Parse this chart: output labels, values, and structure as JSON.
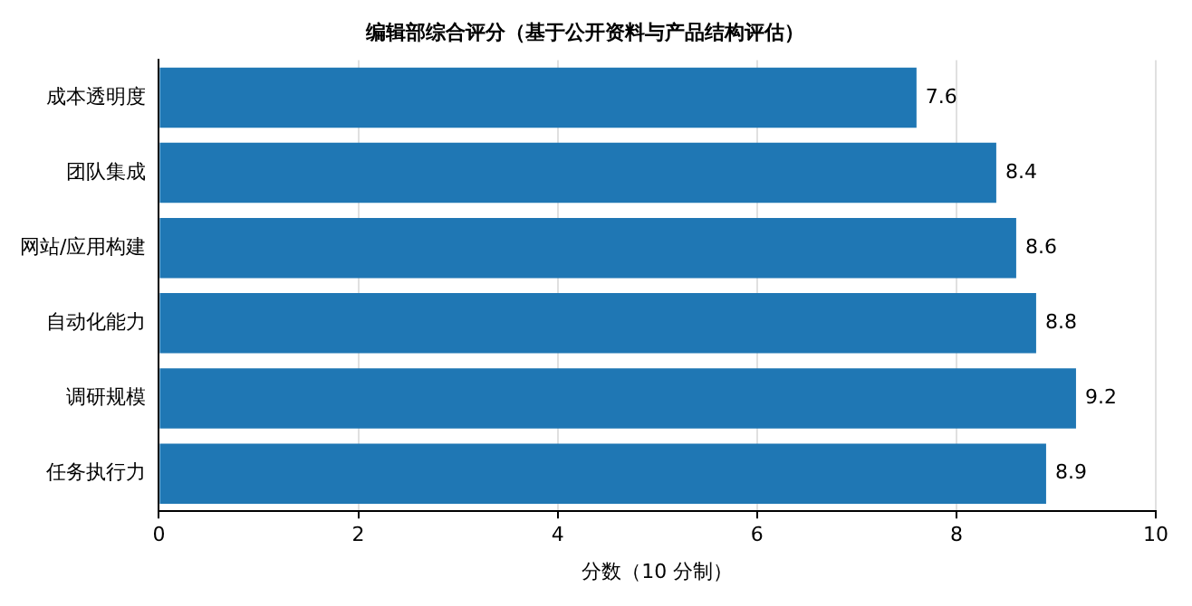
{
  "chart_data": {
    "type": "bar",
    "orientation": "horizontal",
    "title": "编辑部综合评分（基于公开资料与产品结构评估）",
    "xlabel": "分数（10 分制）",
    "categories": [
      "成本透明度",
      "团队集成",
      "网站/应用构建",
      "自动化能力",
      "调研规模",
      "任务执行力"
    ],
    "values": [
      7.6,
      8.4,
      8.6,
      8.8,
      9.2,
      8.9
    ],
    "color": "#1f77b4",
    "xlim": [
      0,
      10
    ],
    "xticks": [
      0,
      2,
      4,
      6,
      8,
      10
    ],
    "grid": "x",
    "data_labels": true,
    "legend": false
  }
}
